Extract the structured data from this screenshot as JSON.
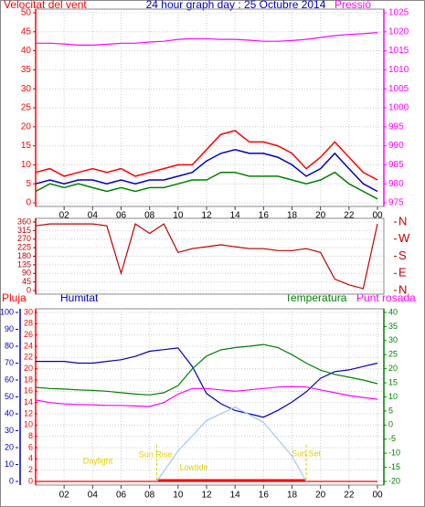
{
  "chart_data": [
    {
      "type": "line",
      "title": "24 hour graph day : 25 Octubre 2014",
      "ylabel": "Velocitat del vent",
      "y2label": "Pressió",
      "y_color": "#ff0000",
      "y2_color": "#ff00ff",
      "grid": true,
      "xlim": [
        0,
        24
      ],
      "xticks": [
        {
          "value": 2,
          "label": "02"
        },
        {
          "value": 4,
          "label": "04"
        },
        {
          "value": 6,
          "label": "06"
        },
        {
          "value": 8,
          "label": "08"
        },
        {
          "value": 10,
          "label": "10"
        },
        12,
        14,
        16,
        18,
        20,
        22,
        {
          "value": 24,
          "label": "00"
        }
      ],
      "ylim": [
        0,
        50
      ],
      "yticks": [
        0,
        5,
        10,
        15,
        20,
        25,
        30,
        35,
        40,
        45,
        50
      ],
      "y2lim": [
        975,
        1025
      ],
      "y2ticks": [
        975,
        980,
        985,
        990,
        995,
        1000,
        1005,
        1010,
        1015,
        1020,
        1025
      ],
      "x": [
        0,
        1,
        2,
        3,
        4,
        5,
        6,
        7,
        8,
        9,
        10,
        11,
        12,
        13,
        14,
        15,
        16,
        17,
        18,
        19,
        20,
        21,
        22,
        23,
        24
      ],
      "series": [
        {
          "color": "#ff0000",
          "values": [
            8,
            9,
            7,
            8,
            9,
            8,
            9,
            7,
            8,
            9,
            10,
            10,
            14,
            18,
            19,
            16,
            16,
            15,
            13,
            9,
            12,
            16,
            12,
            8,
            6
          ]
        },
        {
          "color": "#0000c0",
          "values": [
            5,
            6,
            5,
            6,
            6,
            5,
            6,
            5,
            6,
            6,
            7,
            8,
            11,
            13,
            14,
            13,
            13,
            12,
            10,
            7,
            9,
            13,
            9,
            5,
            3
          ]
        },
        {
          "color": "#008000",
          "values": [
            3,
            5,
            4,
            5,
            4,
            3,
            4,
            3,
            4,
            4,
            5,
            6,
            6,
            8,
            8,
            7,
            7,
            7,
            6,
            5,
            6,
            8,
            5,
            3,
            1
          ]
        },
        {
          "color": "#ff00ff",
          "axis": "y2",
          "values": [
            1017,
            1017,
            1016.8,
            1016.5,
            1016.5,
            1016.7,
            1017,
            1017,
            1017.3,
            1017.5,
            1018,
            1018.2,
            1018.2,
            1018,
            1018,
            1017.8,
            1017.5,
            1017.5,
            1017.7,
            1018,
            1018.5,
            1019,
            1019.3,
            1019.5,
            1019.8
          ]
        }
      ]
    },
    {
      "type": "line",
      "y_color": "#c00000",
      "y2_color": "#c00000",
      "grid": true,
      "xlim": [
        0,
        24
      ],
      "ylim": [
        0,
        360
      ],
      "yticks": [
        0,
        45,
        90,
        135,
        180,
        225,
        270,
        315,
        360
      ],
      "y2lim": [
        0,
        360
      ],
      "y2ticks": [
        {
          "value": 360,
          "label": "N"
        },
        {
          "value": 270,
          "label": "W"
        },
        {
          "value": 180,
          "label": "S"
        },
        {
          "value": 90,
          "label": "E"
        },
        {
          "value": 0,
          "label": "N"
        }
      ],
      "x": [
        0,
        1,
        2,
        3,
        4,
        5,
        6,
        7,
        8,
        9,
        10,
        11,
        12,
        13,
        14,
        15,
        16,
        17,
        18,
        19,
        20,
        21,
        22,
        23,
        24
      ],
      "series": [
        {
          "color": "#c00000",
          "values": [
            340,
            350,
            350,
            350,
            350,
            340,
            90,
            350,
            300,
            350,
            200,
            220,
            230,
            240,
            230,
            220,
            220,
            210,
            210,
            220,
            200,
            60,
            30,
            10,
            350
          ]
        }
      ]
    },
    {
      "type": "line",
      "y_color": "#ff0000",
      "y2_color": "#008000",
      "y3_color": "#0000c0",
      "grid": true,
      "xlim": [
        0,
        24
      ],
      "xticks": [
        {
          "value": 2,
          "label": "02"
        },
        {
          "value": 4,
          "label": "04"
        },
        {
          "value": 6,
          "label": "06"
        },
        {
          "value": 8,
          "label": "08"
        },
        {
          "value": 10,
          "label": "10"
        },
        12,
        14,
        16,
        18,
        20,
        22,
        {
          "value": 24,
          "label": "00"
        }
      ],
      "ylim": [
        0,
        30
      ],
      "yticks": [
        0,
        2,
        4,
        6,
        8,
        10,
        12,
        14,
        16,
        18,
        20,
        22,
        24,
        26,
        28,
        30
      ],
      "y2lim": [
        -20,
        40
      ],
      "y2ticks": [
        -20,
        -15,
        -10,
        -5,
        0,
        5,
        10,
        15,
        20,
        25,
        30,
        35,
        40
      ],
      "y3lim": [
        0,
        100
      ],
      "y3ticks": [
        0,
        10,
        20,
        30,
        40,
        50,
        60,
        70,
        80,
        90,
        100
      ],
      "x": [
        0,
        1,
        2,
        3,
        4,
        5,
        6,
        7,
        8,
        9,
        10,
        11,
        12,
        13,
        14,
        15,
        16,
        17,
        18,
        19,
        20,
        21,
        22,
        23,
        24
      ],
      "sunrise": 8.5,
      "sunset": 19,
      "daylight_color": "#ff0000",
      "marker_color": "#e0d000",
      "annotations": [
        "Daylight",
        "Sun Rise",
        "Lowtide",
        "Sun Set"
      ],
      "series": [
        {
          "name": "Pluja",
          "color": "#ff0000",
          "values": [
            0,
            0,
            0,
            0,
            0,
            0,
            0,
            0,
            0,
            0,
            0,
            0,
            0,
            0,
            0,
            0,
            0,
            0,
            0,
            0,
            0,
            0,
            0,
            0,
            0
          ]
        },
        {
          "name": "Humitat",
          "color": "#0000c0",
          "axis": "y3",
          "values": [
            71,
            71,
            71,
            70,
            70,
            71,
            72,
            74,
            77,
            78,
            79,
            68,
            52,
            46,
            42,
            40,
            38,
            42,
            47,
            53,
            61,
            65,
            66,
            68,
            70
          ]
        },
        {
          "name": "Temperatura",
          "color": "#008000",
          "axis": "y2",
          "values": [
            13.4,
            13,
            12.8,
            12.5,
            12.3,
            12,
            11.5,
            11,
            10.7,
            11.5,
            14,
            20,
            24.5,
            26.7,
            27.5,
            28,
            28.6,
            27.5,
            25,
            22,
            19.5,
            18,
            17,
            16,
            14.7
          ]
        },
        {
          "name": "Punt rosada",
          "color": "#ff00ff",
          "axis": "y2",
          "values": [
            8.9,
            8,
            7.5,
            7.3,
            7.2,
            7,
            7,
            6.8,
            6.6,
            8,
            11,
            13,
            13,
            12.5,
            12,
            12.5,
            13,
            13.5,
            13.7,
            13.5,
            12.5,
            11.5,
            10.5,
            9.8,
            9.2
          ]
        },
        {
          "color": "#a0c8f0",
          "axis": "y3",
          "x": [
            8.5,
            10,
            12,
            14,
            16,
            18,
            19
          ],
          "values": [
            0,
            18,
            36,
            44,
            35,
            15,
            0
          ]
        }
      ]
    }
  ]
}
